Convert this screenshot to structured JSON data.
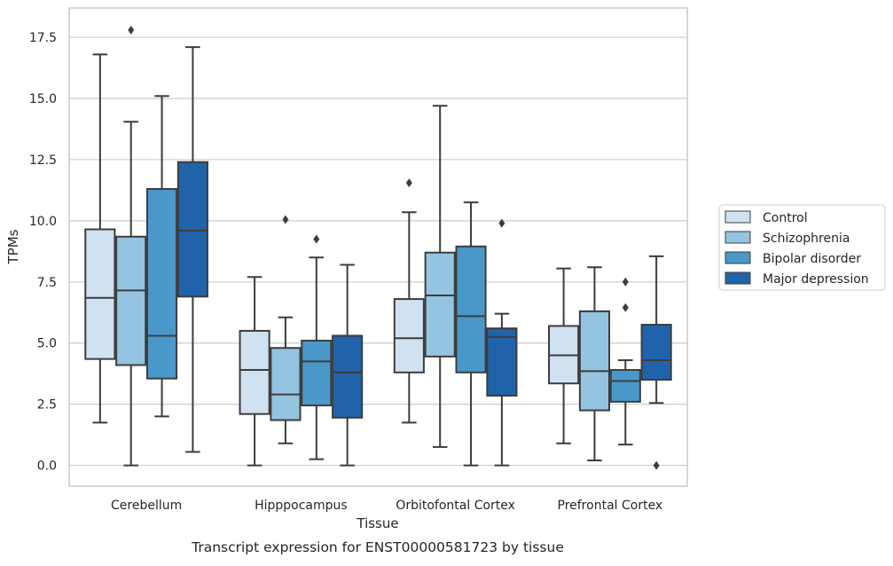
{
  "chart_data": {
    "type": "boxplot",
    "title": "Transcript expression for ENST00000581723 by tissue",
    "xlabel": "Tissue",
    "ylabel": "TPMs",
    "ylim": [
      -0.85,
      18.7
    ],
    "yticks": [
      0.0,
      2.5,
      5.0,
      7.5,
      10.0,
      12.5,
      15.0,
      17.5
    ],
    "ytick_labels": [
      "0.0",
      "2.5",
      "5.0",
      "7.5",
      "10.0",
      "12.5",
      "15.0",
      "17.5"
    ],
    "grid": "horizontal",
    "legend_position": "right",
    "categories": [
      "Cerebellum",
      "Hipppocampus",
      "Orbitofontal Cortex",
      "Prefrontal Cortex"
    ],
    "series": [
      {
        "name": "Control",
        "color": "#d0e1f2",
        "boxes": [
          {
            "whislo": 1.75,
            "q1": 4.35,
            "med": 6.85,
            "q3": 9.65,
            "whishi": 16.8,
            "fliers": []
          },
          {
            "whislo": 0.0,
            "q1": 2.1,
            "med": 3.9,
            "q3": 5.5,
            "whishi": 7.7,
            "fliers": []
          },
          {
            "whislo": 1.75,
            "q1": 3.8,
            "med": 5.2,
            "q3": 6.8,
            "whishi": 10.35,
            "fliers": [
              11.55
            ]
          },
          {
            "whislo": 0.9,
            "q1": 3.35,
            "med": 4.5,
            "q3": 5.7,
            "whishi": 8.05,
            "fliers": []
          }
        ]
      },
      {
        "name": "Schizophrenia",
        "color": "#94c4df",
        "boxes": [
          {
            "whislo": 0.0,
            "q1": 4.1,
            "med": 7.15,
            "q3": 9.35,
            "whishi": 14.05,
            "fliers": [
              17.8
            ]
          },
          {
            "whislo": 0.9,
            "q1": 1.85,
            "med": 2.9,
            "q3": 4.8,
            "whishi": 6.05,
            "fliers": [
              10.05
            ]
          },
          {
            "whislo": 0.75,
            "q1": 4.45,
            "med": 6.95,
            "q3": 8.7,
            "whishi": 14.7,
            "fliers": []
          },
          {
            "whislo": 0.2,
            "q1": 2.25,
            "med": 3.85,
            "q3": 6.3,
            "whishi": 8.1,
            "fliers": []
          }
        ]
      },
      {
        "name": "Bipolar disorder",
        "color": "#4a98c9",
        "boxes": [
          {
            "whislo": 2.0,
            "q1": 3.55,
            "med": 5.3,
            "q3": 11.3,
            "whishi": 15.1,
            "fliers": []
          },
          {
            "whislo": 0.25,
            "q1": 2.45,
            "med": 4.25,
            "q3": 5.1,
            "whishi": 8.5,
            "fliers": [
              9.25
            ]
          },
          {
            "whislo": 0.0,
            "q1": 3.8,
            "med": 6.1,
            "q3": 8.95,
            "whishi": 10.75,
            "fliers": []
          },
          {
            "whislo": 0.85,
            "q1": 2.6,
            "med": 3.45,
            "q3": 3.9,
            "whishi": 4.3,
            "fliers": [
              6.45,
              7.5
            ]
          }
        ]
      },
      {
        "name": "Major depression",
        "color": "#2163aa",
        "boxes": [
          {
            "whislo": 0.55,
            "q1": 6.9,
            "med": 9.6,
            "q3": 12.4,
            "whishi": 17.1,
            "fliers": []
          },
          {
            "whislo": 0.0,
            "q1": 1.95,
            "med": 3.8,
            "q3": 5.3,
            "whishi": 8.2,
            "fliers": []
          },
          {
            "whislo": 0.0,
            "q1": 2.85,
            "med": 5.25,
            "q3": 5.6,
            "whishi": 6.2,
            "fliers": [
              9.9
            ]
          },
          {
            "whislo": 2.55,
            "q1": 3.5,
            "med": 4.3,
            "q3": 5.75,
            "whishi": 8.55,
            "fliers": [
              0.0
            ]
          }
        ]
      }
    ]
  }
}
